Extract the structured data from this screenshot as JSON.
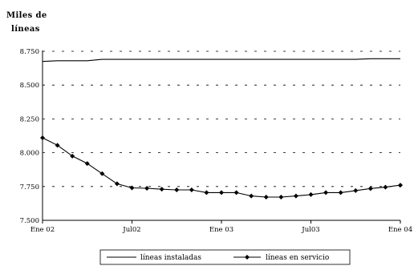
{
  "chart_data": {
    "type": "line",
    "title": "",
    "ylabel_lines": [
      "Miles de",
      "líneas"
    ],
    "xlabel": "",
    "ylim": [
      7500,
      8750
    ],
    "y_ticks": [
      7500,
      7750,
      8000,
      8250,
      8500,
      8750
    ],
    "y_tick_labels": [
      "7.500",
      "7.750",
      "8.000",
      "8.250",
      "8.500",
      "8.750"
    ],
    "x_tick_labels": [
      "Ene 02",
      "Jul02",
      "Ene 03",
      "Jul03",
      "Ene 04"
    ],
    "x_tick_index": [
      0,
      6,
      12,
      18,
      24
    ],
    "grid": "horizontal dashed",
    "legend_position": "bottom",
    "series": [
      {
        "name": "líneas instaladas",
        "marker": "none",
        "values": [
          8675,
          8680,
          8680,
          8680,
          8690,
          8690,
          8690,
          8690,
          8690,
          8690,
          8690,
          8690,
          8690,
          8690,
          8690,
          8690,
          8690,
          8690,
          8690,
          8690,
          8690,
          8690,
          8695,
          8695,
          8695
        ]
      },
      {
        "name": "líneas en servicio",
        "marker": "diamond",
        "values": [
          8110,
          8055,
          7975,
          7920,
          7845,
          7770,
          7740,
          7737,
          7730,
          7725,
          7725,
          7705,
          7705,
          7705,
          7680,
          7672,
          7672,
          7680,
          7690,
          7705,
          7705,
          7720,
          7735,
          7745,
          7760
        ]
      }
    ]
  }
}
